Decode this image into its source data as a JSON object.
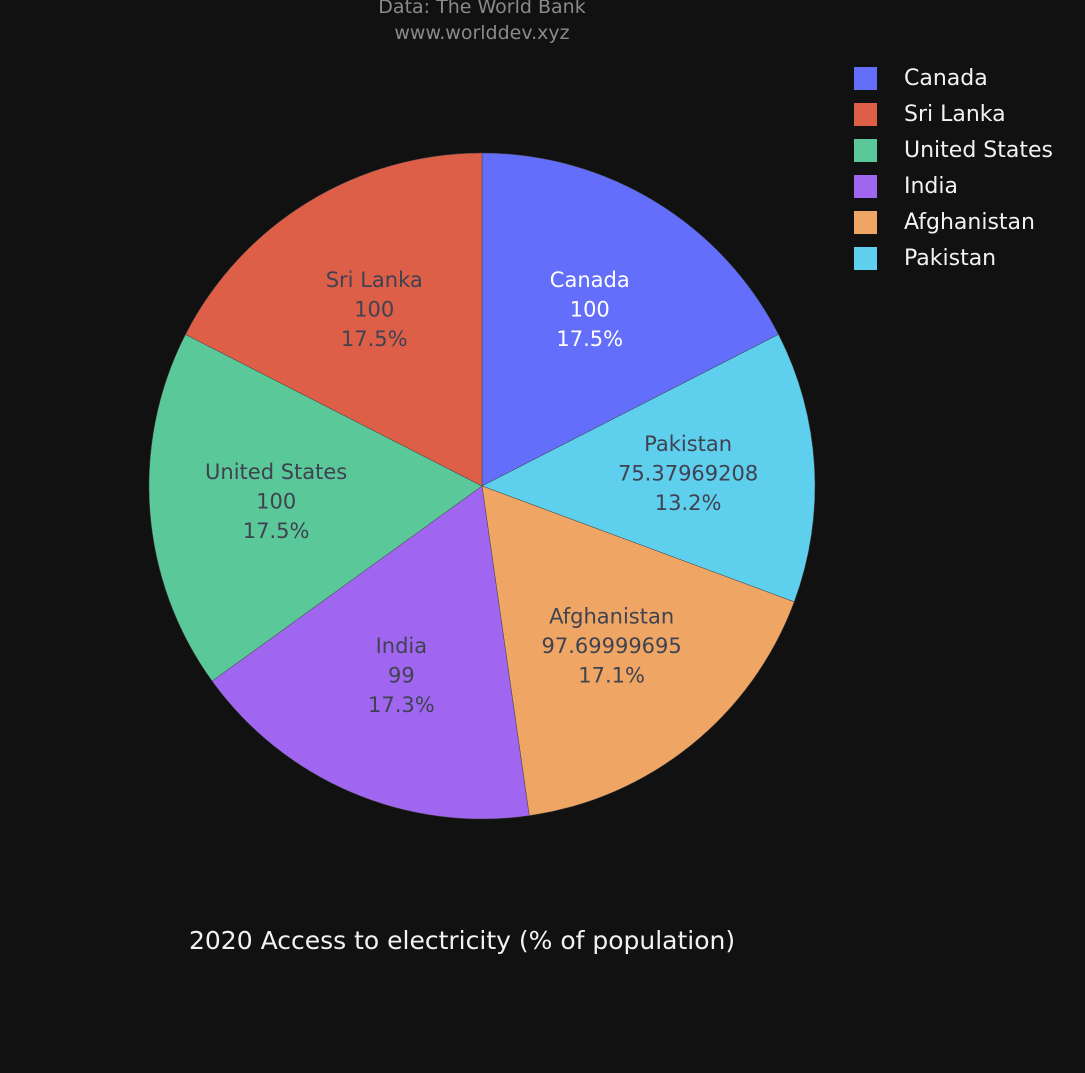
{
  "source": {
    "line1": "Data: The World Bank",
    "line2": "www.worlddev.xyz"
  },
  "chart_data": {
    "type": "pie",
    "title": "2020 Access to electricity (% of population)",
    "legend_placement": "top-right",
    "slices": [
      {
        "label": "Canada",
        "value": 100,
        "value_text": "100",
        "percent_text": "17.5%",
        "color": "#636efa",
        "text_color": "#ffffff"
      },
      {
        "label": "Pakistan",
        "value": 75.37969208,
        "value_text": "75.37969208",
        "percent_text": "13.2%",
        "color": "#5fcfee",
        "text_color": "#3f4250"
      },
      {
        "label": "Afghanistan",
        "value": 97.69999695,
        "value_text": "97.69999695",
        "percent_text": "17.1%",
        "color": "#efa665",
        "text_color": "#3f4250"
      },
      {
        "label": "India",
        "value": 99,
        "value_text": "99",
        "percent_text": "17.3%",
        "color": "#a066f0",
        "text_color": "#3f4250"
      },
      {
        "label": "United States",
        "value": 100,
        "value_text": "100",
        "percent_text": "17.5%",
        "color": "#5ac898",
        "text_color": "#3f4250"
      },
      {
        "label": "Sri Lanka",
        "value": 100,
        "value_text": "100",
        "percent_text": "17.5%",
        "color": "#de5f48",
        "text_color": "#3f4250"
      }
    ],
    "legend": [
      {
        "label": "Canada",
        "color": "#636efa"
      },
      {
        "label": "Sri Lanka",
        "color": "#de5f48"
      },
      {
        "label": "United States",
        "color": "#5ac898"
      },
      {
        "label": "India",
        "color": "#a066f0"
      },
      {
        "label": "Afghanistan",
        "color": "#efa665"
      },
      {
        "label": "Pakistan",
        "color": "#5fcfee"
      }
    ]
  }
}
